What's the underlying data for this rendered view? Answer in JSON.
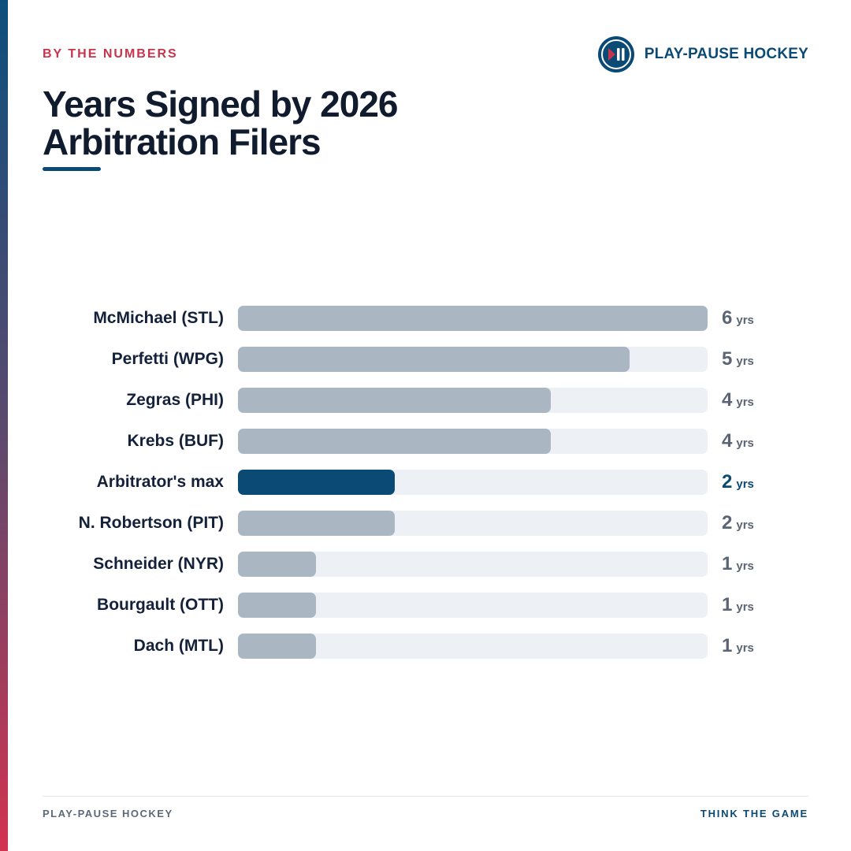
{
  "header": {
    "kicker": "BY THE NUMBERS",
    "brand_name": "PLAY-PAUSE HOCKEY",
    "brand_icon": "play-pause-icon",
    "title_lines": [
      "Years Signed by 2026",
      "Arbitration Filers"
    ]
  },
  "colors": {
    "accent_red": "#c8344c",
    "brand_blue": "#0b4a74",
    "bar_gray": "#aab6c1",
    "track": "#edf1f6"
  },
  "chart_data": {
    "type": "bar",
    "orientation": "horizontal",
    "categories": [
      "McMichael (STL)",
      "Perfetti (WPG)",
      "Zegras (PHI)",
      "Krebs (BUF)",
      "Arbitrator's max",
      "N. Robertson (PIT)",
      "Schneider (NYR)",
      "Bourgault (OTT)",
      "Dach (MTL)"
    ],
    "values": [
      6,
      5,
      4,
      4,
      2,
      2,
      1,
      1,
      1
    ],
    "highlight": "Arbitrator's max",
    "unit": "yrs",
    "xlim": [
      0,
      6
    ],
    "grid": false
  },
  "footer": {
    "left": "PLAY-PAUSE HOCKEY",
    "right": "THINK THE GAME"
  }
}
